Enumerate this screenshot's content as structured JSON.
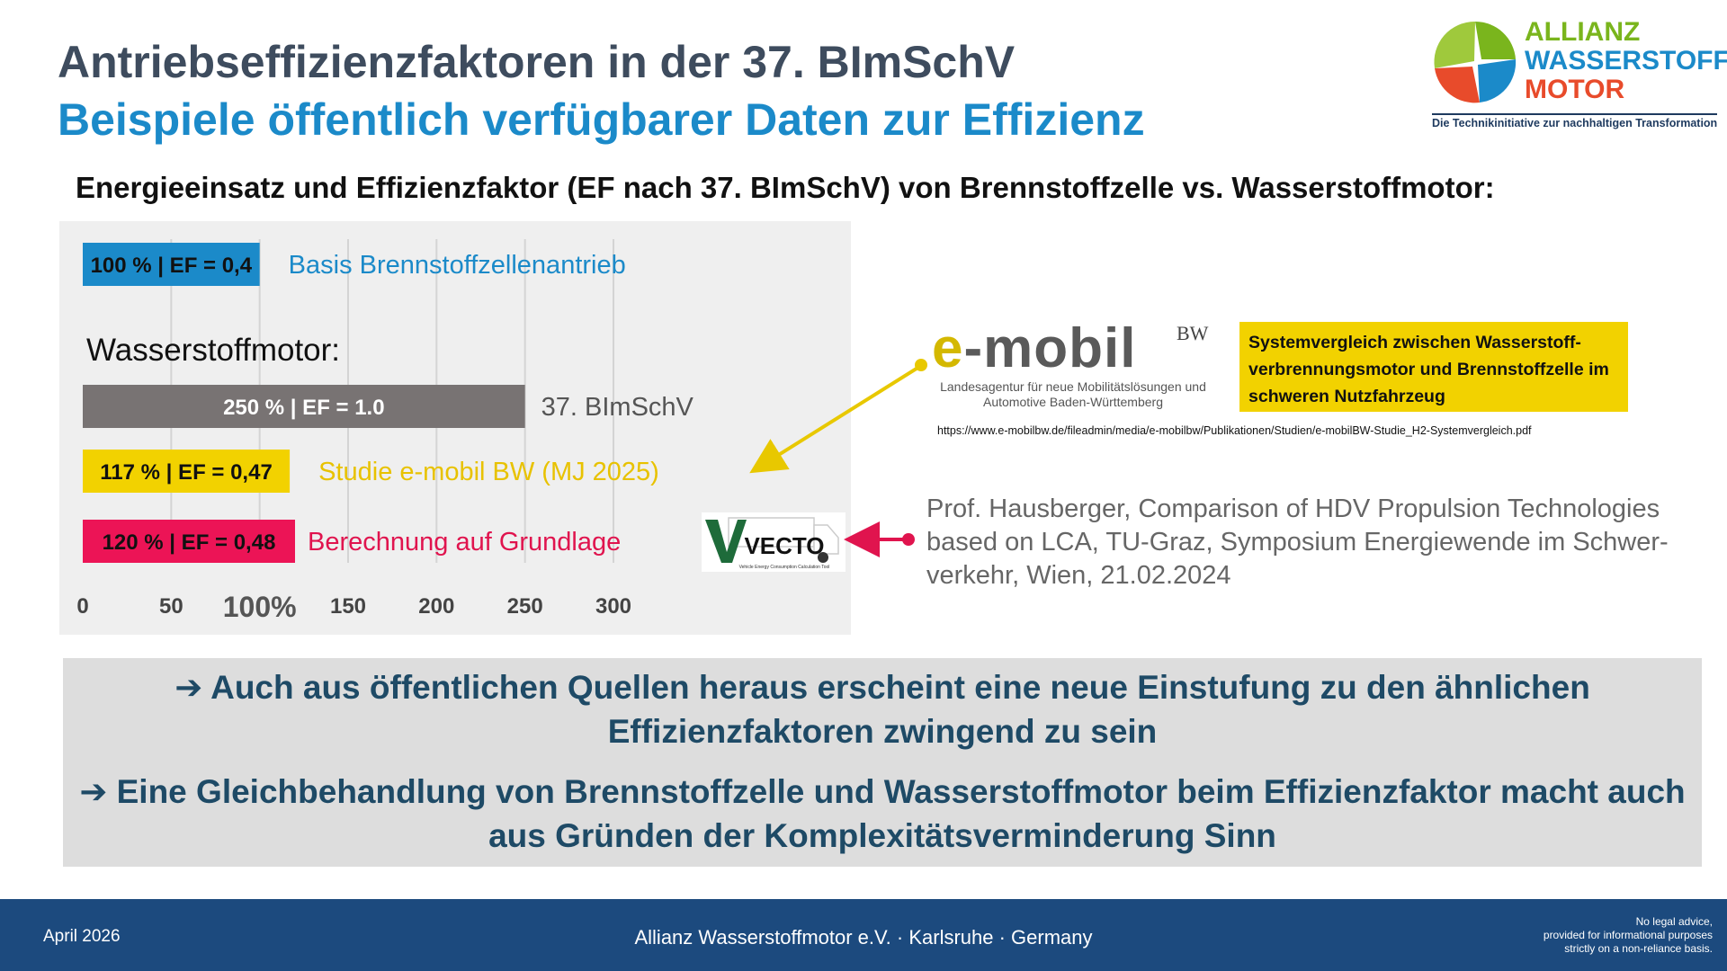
{
  "header": {
    "title": "Antriebseffizienzfaktoren in der 37. BImSchV",
    "subtitle": "Beispiele öffentlich verfügbarer Daten zur Effizienz",
    "section_heading": "Energieeinsatz und Effizienzfaktor (EF nach 37. BImSchV) von Brennstoffzelle vs. Wasserstoffmotor:"
  },
  "logo": {
    "line1": "ALLIANZ",
    "line2": "WASSERSTOFF",
    "line3": "MOTOR",
    "tagline": "Die Technikinitiative zur nachhaltigen Transformation"
  },
  "chart_data": {
    "type": "bar",
    "orientation": "horizontal",
    "xlim": [
      0,
      300
    ],
    "x_ticks": [
      "0",
      "50",
      "100%",
      "150",
      "200",
      "250",
      "300"
    ],
    "x_tick_values": [
      0,
      50,
      100,
      150,
      200,
      250,
      300
    ],
    "group_label": "Wasserstoffmotor:",
    "bars": [
      {
        "value": 100,
        "bar_label": "100 % | EF = 0,4",
        "side_label": "Basis Brennstoffzellenantrieb",
        "color": "#1b8ac9",
        "label_color": "#1b8ac9"
      },
      {
        "value": 250,
        "bar_label": "250 % | EF = 1.0",
        "side_label": "37. BImSchV",
        "color": "#787373",
        "label_color": "#555555"
      },
      {
        "value": 117,
        "bar_label": "117 % | EF = 0,47",
        "side_label": "Studie e-mobil BW (MJ 2025)",
        "color": "#f2d200",
        "label_color": "#e8c200"
      },
      {
        "value": 120,
        "bar_label": "120 % | EF = 0,48",
        "side_label": "Berechnung auf Grundlage",
        "color": "#ec1456",
        "label_color": "#e0144e"
      }
    ],
    "grid": true
  },
  "sources": {
    "emobil": {
      "brand_e": "e",
      "brand_rest": "-mobil",
      "brand_bw": "BW",
      "brand_sub": "Landesagentur für neue Mobilitätslösungen und Automotive Baden-Württemberg",
      "study_title": "Systemvergleich zwischen Wasserstoff-verbrennungsmotor und Brennstoffzelle im schweren Nutzfahrzeug",
      "url": "https://www.e-mobilbw.de/fileadmin/media/e-mobilbw/Publikationen/Studien/e-mobilBW-Studie_H2-Systemvergleich.pdf"
    },
    "vecto": {
      "logo_text": "VECTO",
      "logo_sub": "Vehicle Energy Consumption Calculation Tool"
    },
    "hausberger": "Prof. Hausberger, Comparison of HDV Propulsion Technologies based on LCA, TU-Graz, Symposium Energiewende im Schwer-verkehr, Wien, 21.02.2024"
  },
  "conclusions": [
    "➔ Auch aus öffentlichen Quellen heraus erscheint eine neue Einstufung zu den ähnlichen Effizienzfaktoren zwingend zu sein",
    "➔ Eine Gleichbehandlung von Brennstoffzelle und Wasserstoffmotor beim Effizienzfaktor macht auch aus Gründen der Komplexitätsverminderung Sinn"
  ],
  "footer": {
    "date": "April 2026",
    "center": "Allianz Wasserstoffmotor e.V. · Karlsruhe · Germany",
    "legal": [
      "No legal advice,",
      "provided for informational purposes",
      "strictly on a non-reliance basis."
    ]
  },
  "colors": {
    "arrow_yellow": "#e8c800",
    "arrow_red": "#e0144e"
  }
}
